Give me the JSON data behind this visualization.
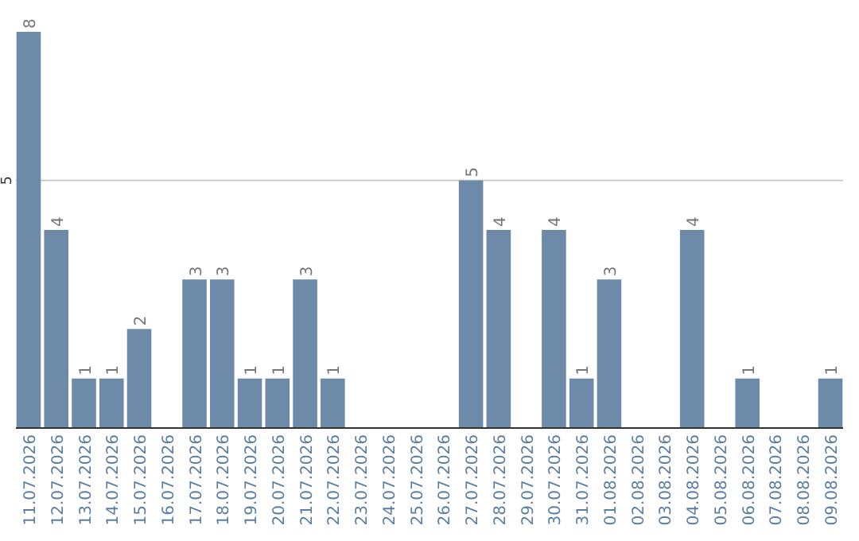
{
  "chart_data": {
    "type": "bar",
    "categories": [
      "11.07.2026",
      "12.07.2026",
      "13.07.2026",
      "14.07.2026",
      "15.07.2026",
      "16.07.2026",
      "17.07.2026",
      "18.07.2026",
      "19.07.2026",
      "20.07.2026",
      "21.07.2026",
      "22.07.2026",
      "23.07.2026",
      "24.07.2026",
      "25.07.2026",
      "26.07.2026",
      "27.07.2026",
      "28.07.2026",
      "29.07.2026",
      "30.07.2026",
      "31.07.2026",
      "01.08.2026",
      "02.08.2026",
      "03.08.2026",
      "04.08.2026",
      "05.08.2026",
      "06.08.2026",
      "07.08.2026",
      "08.08.2026",
      "09.08.2026"
    ],
    "values": [
      8,
      4,
      1,
      1,
      2,
      0,
      3,
      3,
      1,
      1,
      3,
      1,
      0,
      0,
      0,
      0,
      5,
      4,
      0,
      4,
      1,
      3,
      0,
      0,
      4,
      0,
      1,
      0,
      0,
      1
    ],
    "value_labels": [
      "8",
      "4",
      "1",
      "1",
      "2",
      null,
      "3",
      "3",
      "1",
      "1",
      "3",
      "1",
      null,
      null,
      null,
      null,
      "5",
      "4",
      null,
      "4",
      "1",
      "3",
      null,
      null,
      "4",
      null,
      "1",
      null,
      null,
      "1"
    ],
    "color": "#6d8aa8",
    "ylim": [
      0,
      8
    ],
    "yticks": [
      5
    ],
    "grid": "y"
  }
}
